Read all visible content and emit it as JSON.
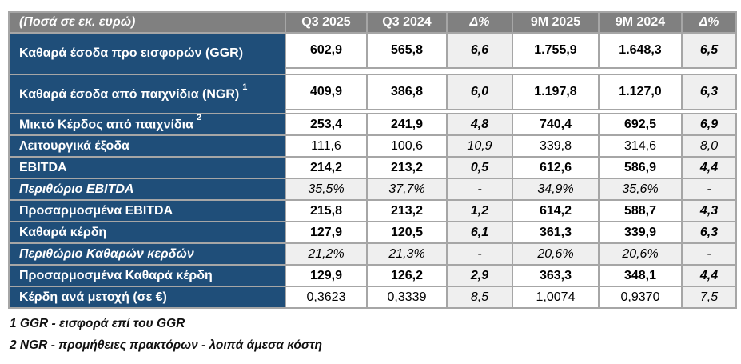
{
  "chart_data": {
    "type": "table",
    "unit_header": "(Ποσά σε εκ. ευρώ)",
    "column_headers": [
      "Q3 2025",
      "Q3 2024",
      "Δ%",
      "9M 2025",
      "9M 2024",
      "Δ%"
    ],
    "rows": [
      {
        "label": "Καθαρά έσοδα προ εισφορών (GGR)",
        "values": [
          "602,9",
          "565,8",
          "6,6",
          "1.755,9",
          "1.648,3",
          "6,5"
        ]
      },
      {
        "label": "Καθαρά έσοδα από παιχνίδια (NGR)",
        "sup": "1",
        "values": [
          "409,9",
          "386,8",
          "6,0",
          "1.197,8",
          "1.127,0",
          "6,3"
        ]
      },
      {
        "label": "Μικτό Κέρδος από παιχνίδια",
        "sup": "2",
        "values": [
          "253,4",
          "241,9",
          "4,8",
          "740,4",
          "692,5",
          "6,9"
        ]
      },
      {
        "label": "Λειτουργικά έξοδα",
        "values": [
          "111,6",
          "100,6",
          "10,9",
          "339,8",
          "314,6",
          "8,0"
        ]
      },
      {
        "label": "EBITDA",
        "values": [
          "214,2",
          "213,2",
          "0,5",
          "612,6",
          "586,9",
          "4,4"
        ]
      },
      {
        "label": "Περιθώριο EBITDA",
        "values": [
          "35,5%",
          "37,7%",
          "-",
          "34,9%",
          "35,6%",
          "-"
        ]
      },
      {
        "label": "Προσαρμοσμένα EBITDA",
        "values": [
          "215,8",
          "213,2",
          "1,2",
          "614,2",
          "588,7",
          "4,3"
        ]
      },
      {
        "label": "Καθαρά κέρδη",
        "values": [
          "127,9",
          "120,5",
          "6,1",
          "361,3",
          "339,9",
          "6,3"
        ]
      },
      {
        "label": "Περιθώριο Καθαρών κερδών",
        "values": [
          "21,2%",
          "21,3%",
          "-",
          "20,6%",
          "20,6%",
          "-"
        ]
      },
      {
        "label": "Προσαρμοσμένα Καθαρά κέρδη",
        "values": [
          "129,9",
          "126,2",
          "2,9",
          "363,3",
          "348,1",
          "4,4"
        ]
      },
      {
        "label": "Κέρδη ανά μετοχή (σε €)",
        "values": [
          "0,3623",
          "0,3339",
          "8,5",
          "1,0074",
          "0,9370",
          "7,5"
        ]
      }
    ],
    "footnotes": [
      "1 GGR - εισφορά επί του GGR",
      "2 NGR - προμήθειες πρακτόρων - λοιπά άμεσα κόστη"
    ],
    "layout_hints": {
      "legend_position": "none",
      "grid": "full-borders"
    }
  },
  "colors": {
    "header_bg": "#808080",
    "row_label_bg": "#1F4E79",
    "delta_column_bg": "#EFEFEF",
    "border": "#A6A6A6",
    "header_text": "#FFFFFF",
    "value_text": "#000000"
  }
}
